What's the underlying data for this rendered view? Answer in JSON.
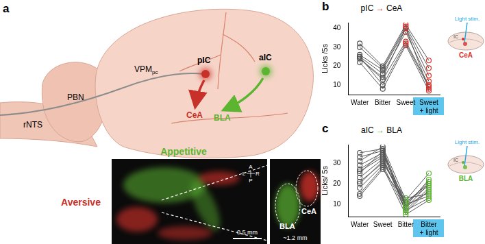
{
  "figure_a": {
    "panel": "a",
    "pathway": [
      "rNTS",
      "PBN",
      {
        "text": "VPM",
        "sub": "pc"
      }
    ],
    "sources": {
      "posterior": "pIC",
      "anterior": "aIC"
    },
    "targets": {
      "posterior": "CeA",
      "anterior": "BLA"
    },
    "image": {
      "appetitive": "Appetitive",
      "aversive": "Aversive",
      "compass": [
        "A",
        "L",
        "R",
        "P"
      ],
      "scale_bar": "0.5 mm",
      "inset_labels": [
        "BLA",
        "CeA"
      ],
      "inset_size": "~1.2 mm"
    }
  },
  "chart_data": [
    {
      "type": "line",
      "panel": "b",
      "title": "pIC → CeA",
      "y_label": "Licks /5s",
      "categories": [
        "Water",
        "Bitter",
        "Sweet",
        "Sweet + light"
      ],
      "color": "#555555",
      "colors": [
        "#555555",
        "#555555",
        "#d9302a",
        "#d9302a"
      ],
      "marker": "open_circle",
      "grid": false,
      "ylim": [
        5,
        43
      ],
      "yticks": [
        10,
        20,
        30,
        40
      ],
      "inset": {
        "stim": "Light stim.",
        "region": "IC",
        "target": "CeA",
        "target_color": "#d9302a"
      },
      "series": [
        {
          "values": [
            32,
            20,
            42,
            23
          ]
        },
        {
          "values": [
            30,
            19,
            41,
            19
          ]
        },
        {
          "values": [
            26,
            18,
            40,
            15
          ]
        },
        {
          "values": [
            25,
            16,
            38,
            12
          ]
        },
        {
          "values": [
            24,
            13,
            33,
            10
          ]
        },
        {
          "values": [
            25,
            10,
            32,
            9
          ]
        },
        {
          "values": [
            22,
            8,
            31,
            7
          ]
        },
        {
          "values": [
            24,
            14,
            40,
            8
          ]
        }
      ]
    },
    {
      "type": "line",
      "panel": "c",
      "title": "aIC → BLA",
      "y_label": "Licks/ 5s",
      "categories": [
        "Water",
        "Sweet",
        "Bitter",
        "Bitter + light"
      ],
      "color": "#555555",
      "colors": [
        "#555555",
        "#555555",
        "#5cb531",
        "#5cb531"
      ],
      "marker": "open_circle",
      "grid": false,
      "ylim": [
        4,
        39
      ],
      "yticks": [
        10,
        20,
        30
      ],
      "inset": {
        "stim": "Light stim.",
        "region": "IC",
        "target": "BLA",
        "target_color": "#5cb531"
      },
      "series": [
        {
          "values": [
            35,
            37,
            9,
            22
          ]
        },
        {
          "values": [
            33,
            36,
            10,
            21
          ]
        },
        {
          "values": [
            31,
            38,
            12,
            25
          ]
        },
        {
          "values": [
            29,
            35,
            8,
            20
          ]
        },
        {
          "values": [
            27,
            34,
            11,
            19
          ]
        },
        {
          "values": [
            26,
            33,
            7,
            18
          ]
        },
        {
          "values": [
            25,
            36,
            6,
            17
          ]
        },
        {
          "values": [
            23,
            32,
            9,
            16
          ]
        },
        {
          "values": [
            21,
            30,
            13,
            15
          ]
        },
        {
          "values": [
            20,
            31,
            10,
            14
          ]
        },
        {
          "values": [
            18,
            29,
            7,
            13
          ]
        },
        {
          "values": [
            15,
            28,
            5,
            12
          ]
        },
        {
          "values": [
            14,
            27,
            11,
            20
          ]
        }
      ]
    }
  ]
}
